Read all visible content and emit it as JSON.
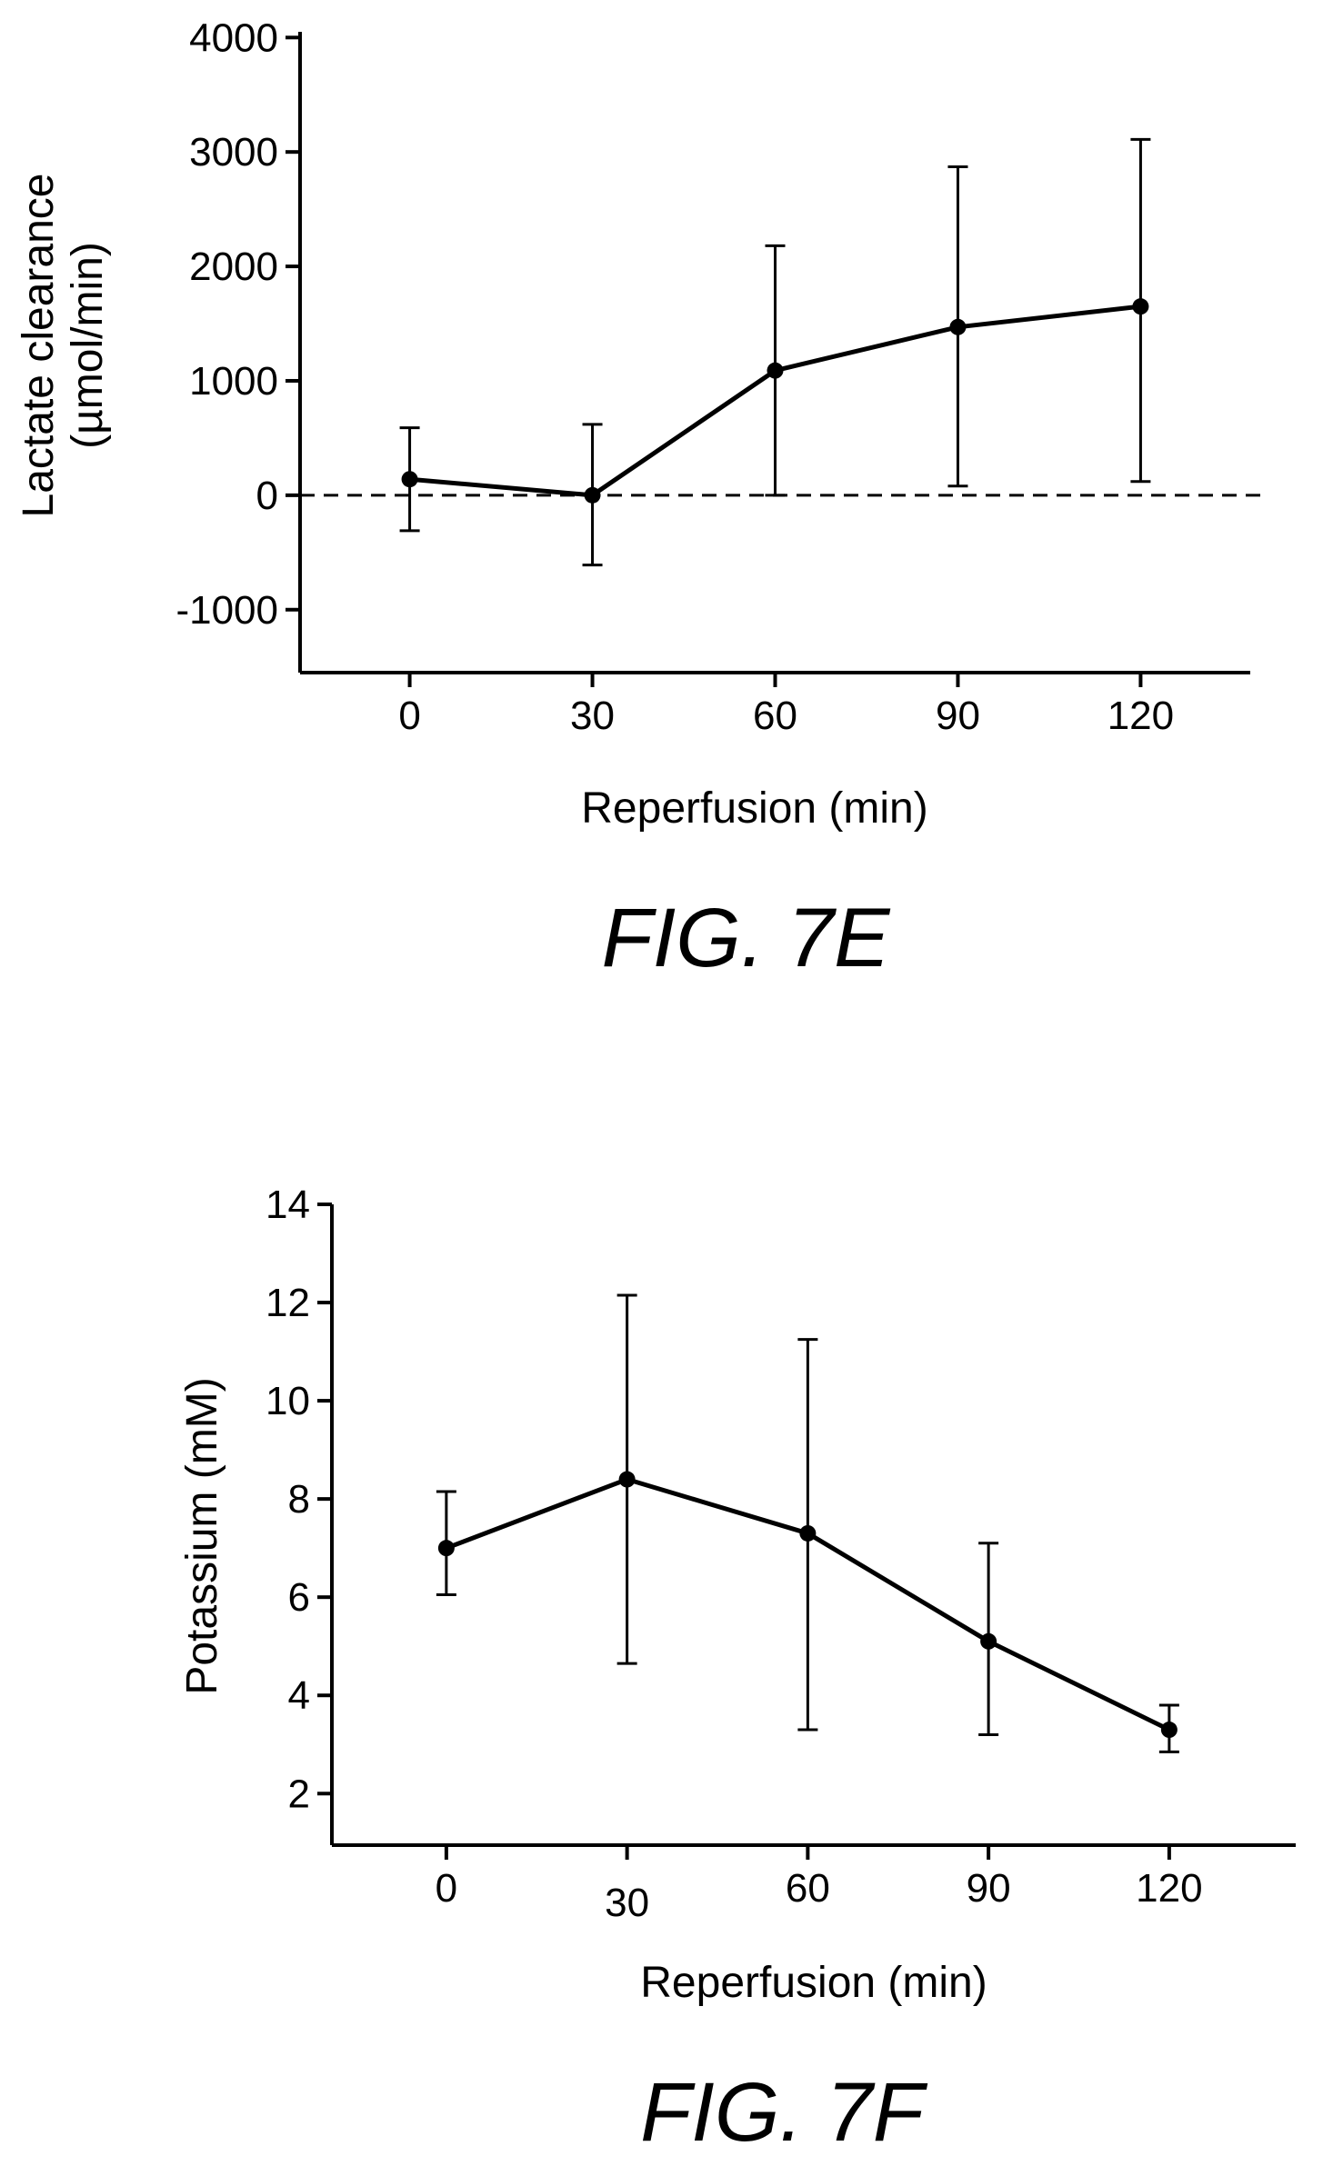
{
  "chart_data": [
    {
      "type": "line",
      "caption": "FIG. 7E",
      "xlabel": "Reperfusion (min)",
      "ylabel_lines": [
        "Lactate clearance",
        "(µmol/min)"
      ],
      "x": [
        0,
        30,
        60,
        90,
        120
      ],
      "x_tick_labels": [
        "0",
        "30",
        "60",
        "90",
        "120"
      ],
      "y_tick_labels": [
        "4000",
        "3000",
        "2000",
        "1000",
        "0",
        "-1000"
      ],
      "y_ticks": [
        4000,
        3000,
        2000,
        1000,
        0,
        -1000
      ],
      "xlim": [
        -18,
        138
      ],
      "ylim": [
        -1550,
        4050
      ],
      "reference_line": {
        "y": 0,
        "style": "dashed"
      },
      "series": [
        {
          "values": [
            140,
            0,
            1090,
            1470,
            1650
          ],
          "err_low": [
            -310,
            -610,
            0,
            80,
            120
          ],
          "err_high": [
            590,
            620,
            2180,
            2870,
            3110
          ]
        }
      ]
    },
    {
      "type": "line",
      "caption": "FIG. 7F",
      "xlabel": "Reperfusion (min)",
      "ylabel_lines": [
        "Potassium (mM)"
      ],
      "x": [
        0,
        30,
        60,
        90,
        120
      ],
      "x_tick_labels": [
        "0",
        "30",
        "60",
        "90",
        "120"
      ],
      "y_tick_labels": [
        "14",
        "12",
        "10",
        "8",
        "6",
        "4",
        "2"
      ],
      "y_ticks": [
        14,
        12,
        10,
        8,
        6,
        4,
        2
      ],
      "xlim": [
        -19,
        141
      ],
      "ylim": [
        0.95,
        14
      ],
      "series": [
        {
          "values": [
            7.0,
            8.4,
            7.3,
            5.1,
            3.3
          ],
          "err_low": [
            6.05,
            4.65,
            3.3,
            3.2,
            2.85
          ],
          "err_high": [
            8.15,
            12.15,
            11.25,
            7.1,
            3.8
          ]
        }
      ]
    }
  ]
}
